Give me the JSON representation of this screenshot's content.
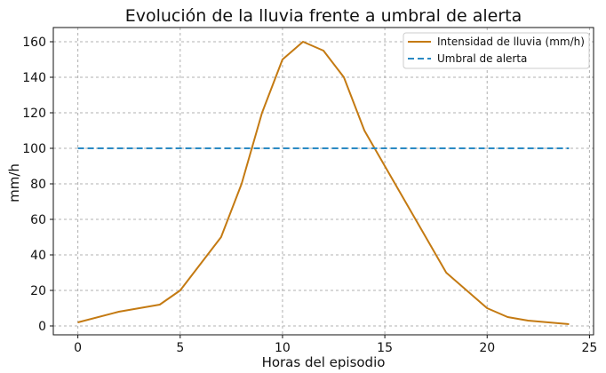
{
  "chart_data": {
    "type": "line",
    "title": "Evolución de la lluvia frente a umbral de alerta",
    "xlabel": "Horas del episodio",
    "ylabel": "mm/h",
    "xlim": [
      -1.2,
      25.2
    ],
    "ylim": [
      -5,
      168
    ],
    "x_ticks": [
      0,
      5,
      10,
      15,
      20,
      25
    ],
    "y_ticks": [
      0,
      20,
      40,
      60,
      80,
      100,
      120,
      140,
      160
    ],
    "grid": true,
    "grid_style": "dashed",
    "legend_position": "top-right",
    "series": [
      {
        "name": "Intensidad de lluvia (mm/h)",
        "color": "#c47a12",
        "line_style": "solid",
        "points": [
          {
            "x": 0,
            "y": 2
          },
          {
            "x": 2,
            "y": 8
          },
          {
            "x": 4,
            "y": 12
          },
          {
            "x": 5,
            "y": 20
          },
          {
            "x": 7,
            "y": 50
          },
          {
            "x": 8,
            "y": 80
          },
          {
            "x": 9,
            "y": 120
          },
          {
            "x": 10,
            "y": 150
          },
          {
            "x": 11,
            "y": 160
          },
          {
            "x": 12,
            "y": 155
          },
          {
            "x": 13,
            "y": 140
          },
          {
            "x": 14,
            "y": 110
          },
          {
            "x": 15,
            "y": 90
          },
          {
            "x": 18,
            "y": 30
          },
          {
            "x": 20,
            "y": 10
          },
          {
            "x": 21,
            "y": 5
          },
          {
            "x": 22,
            "y": 3
          },
          {
            "x": 24,
            "y": 1
          }
        ]
      },
      {
        "name": "Umbral de alerta",
        "color": "#2a8ac4",
        "line_style": "dashed",
        "points": [
          {
            "x": 0,
            "y": 100
          },
          {
            "x": 24,
            "y": 100
          }
        ]
      }
    ]
  }
}
